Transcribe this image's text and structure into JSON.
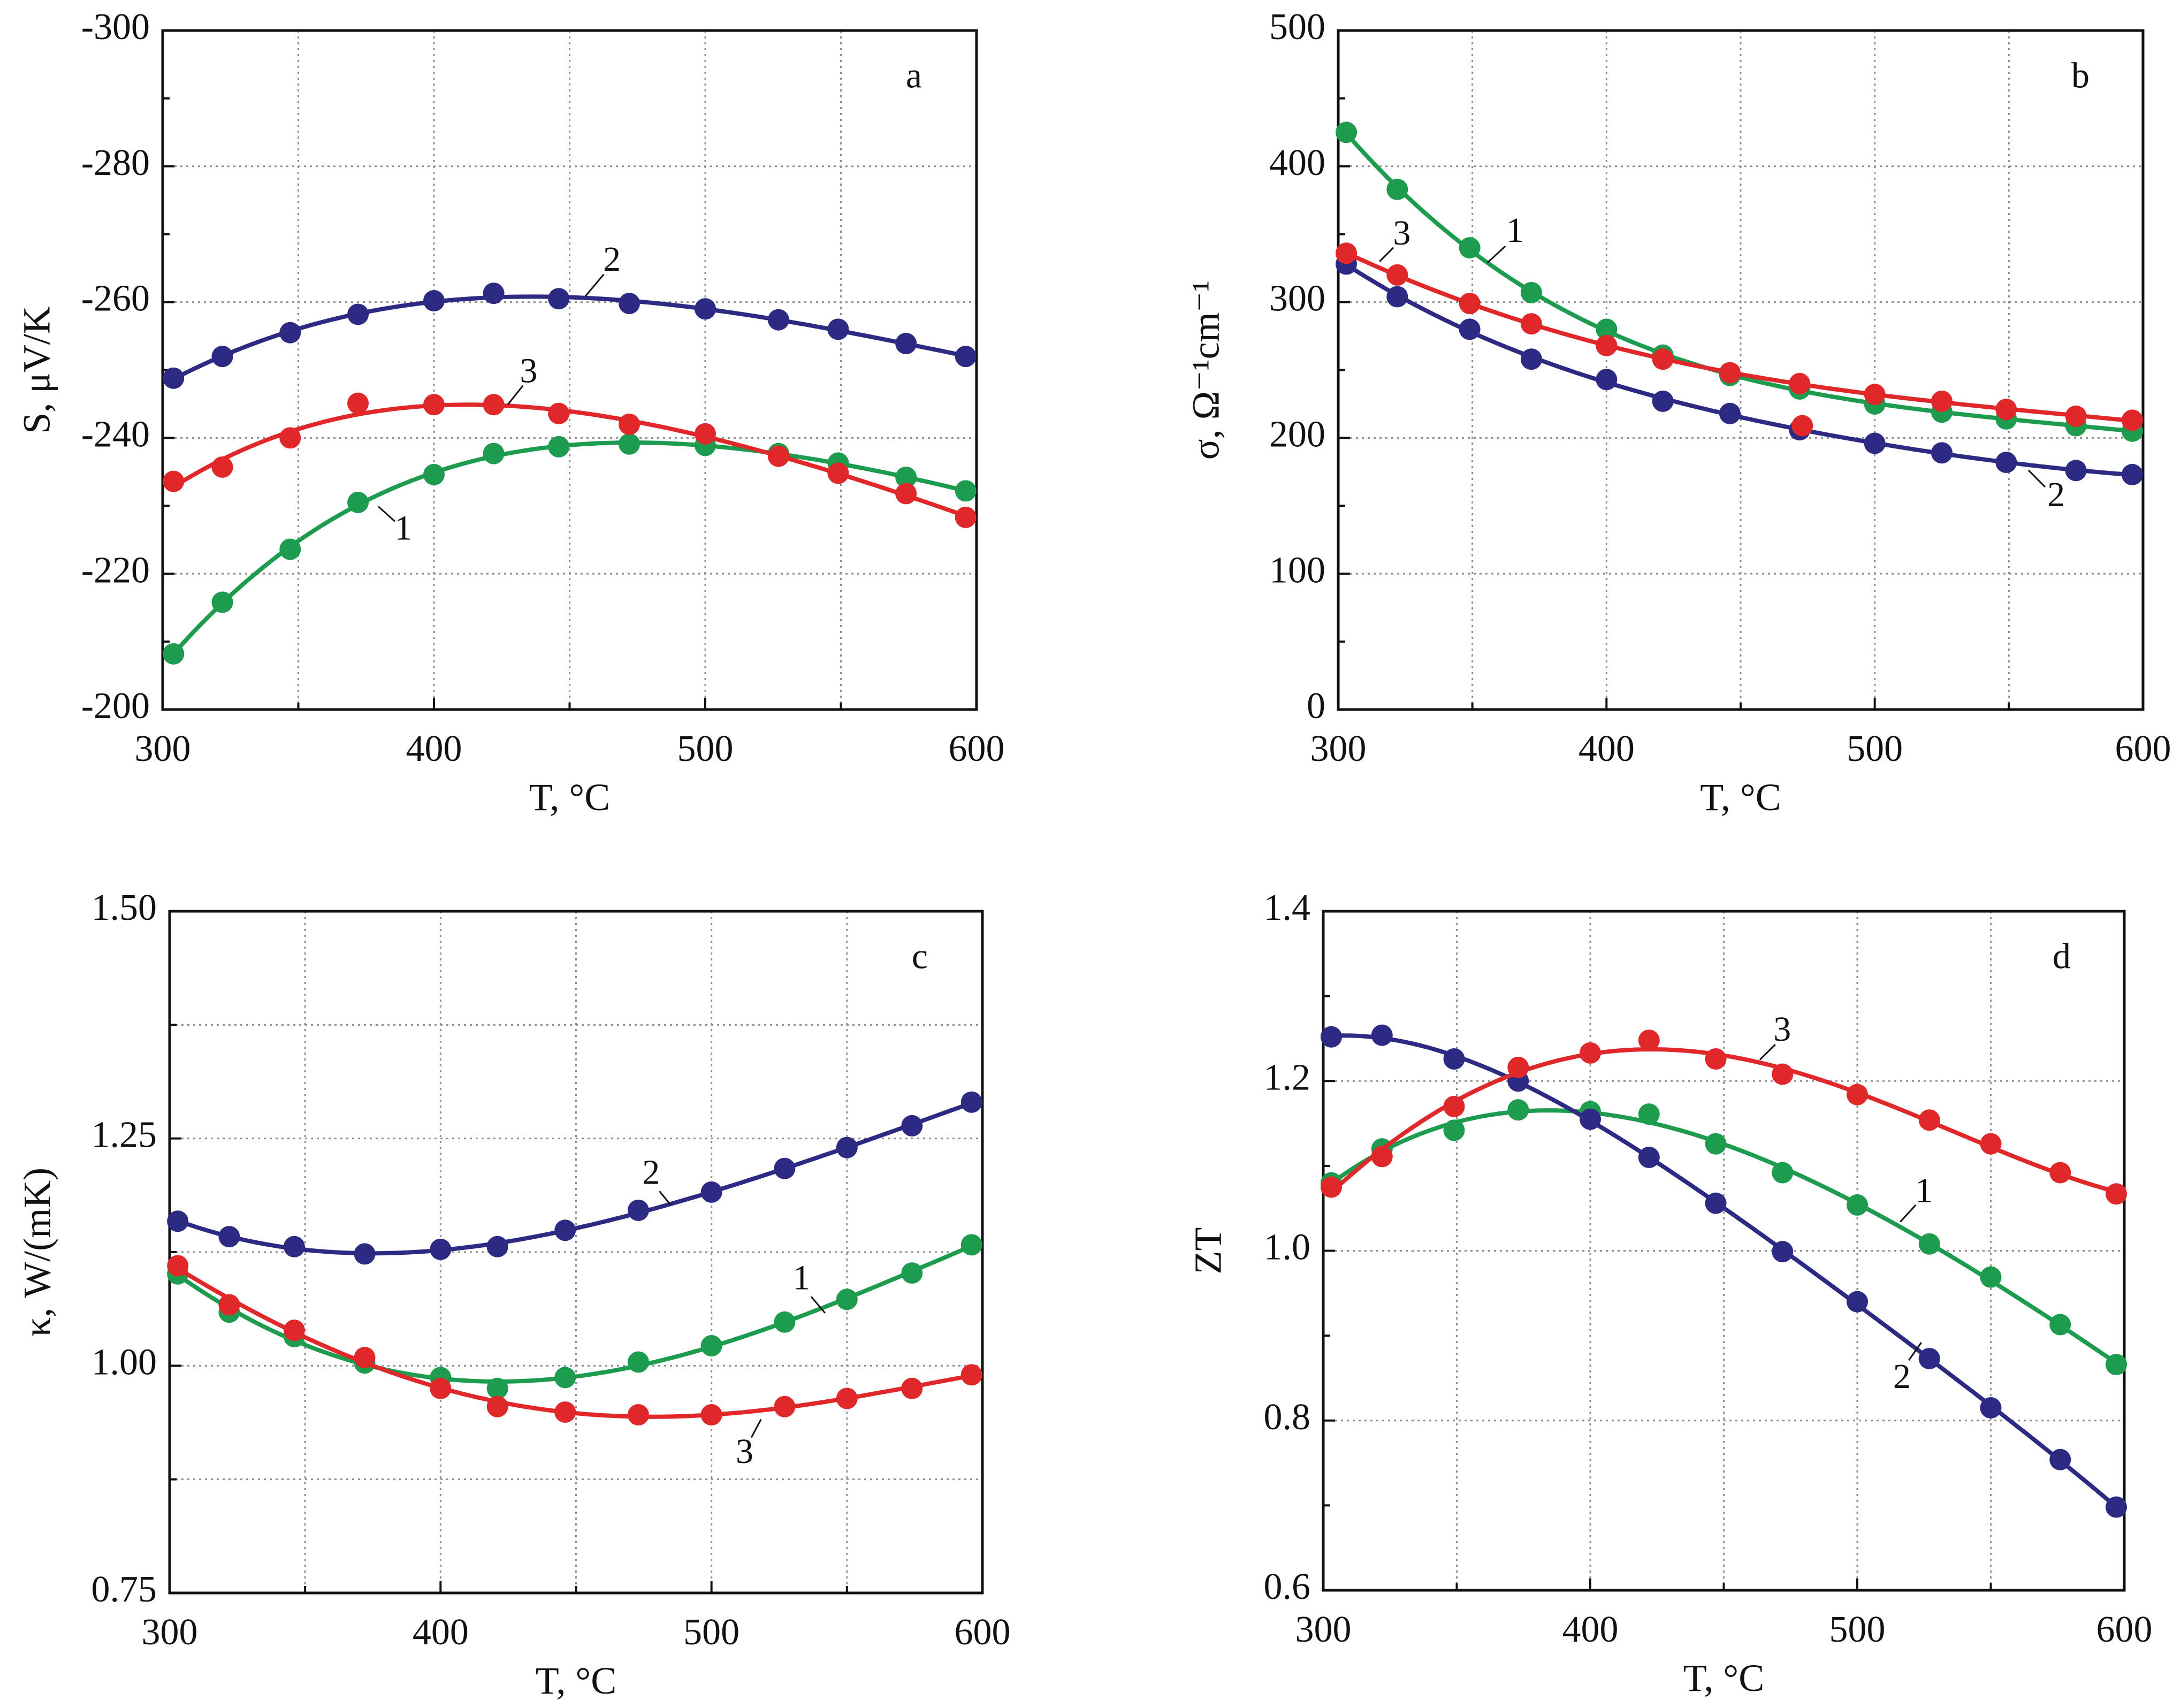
{
  "chart_data": [
    {
      "panel_label": "a",
      "type": "line",
      "xlabel": "T, °C",
      "ylabel": "S, μV/K",
      "xlim": [
        300,
        600
      ],
      "ylim": [
        -300,
        -200
      ],
      "y_reversed": true,
      "grid": true,
      "xticks": [
        {
          "value": 300,
          "label": "300"
        },
        {
          "value": 400,
          "label": "400"
        },
        {
          "value": 500,
          "label": "500"
        },
        {
          "value": 600,
          "label": "600"
        }
      ],
      "yticks": [
        {
          "value": -300,
          "label": "-300"
        },
        {
          "value": -280,
          "label": "-280"
        },
        {
          "value": -260,
          "label": "-260"
        },
        {
          "value": -240,
          "label": "-240"
        },
        {
          "value": -220,
          "label": "-220"
        },
        {
          "value": -200,
          "label": "-200"
        }
      ],
      "series": [
        {
          "name": "1",
          "color": "#1d9b4e",
          "points": [
            [
              304,
              -208.2
            ],
            [
              322,
              -215.8
            ],
            [
              347,
              -223.6
            ],
            [
              372,
              -230.5
            ],
            [
              400,
              -234.6
            ],
            [
              422,
              -237.7
            ],
            [
              446,
              -238.7
            ],
            [
              472,
              -239.1
            ],
            [
              500,
              -238.9
            ],
            [
              527,
              -237.7
            ],
            [
              549,
              -236.3
            ],
            [
              574,
              -234.2
            ],
            [
              596,
              -232.2
            ]
          ],
          "label": {
            "text": "1",
            "at": [
              388.7,
              -226.2
            ],
            "leader": [
              [
                379.5,
                -229.9
              ],
              [
                385.6,
                -227.7
              ]
            ]
          }
        },
        {
          "name": "2",
          "color": "#2d2a84",
          "points": [
            [
              304,
              -248.8
            ],
            [
              322,
              -252.0
            ],
            [
              347,
              -255.5
            ],
            [
              372,
              -258.2
            ],
            [
              400,
              -260.2
            ],
            [
              422,
              -261.3
            ],
            [
              446,
              -260.5
            ],
            [
              472,
              -259.8
            ],
            [
              500,
              -259.0
            ],
            [
              527,
              -257.4
            ],
            [
              549,
              -256.0
            ],
            [
              574,
              -253.9
            ],
            [
              596,
              -252.0
            ]
          ],
          "label": {
            "text": "2",
            "at": [
              465.6,
              -265.8
            ],
            "leader": [
              [
                455.9,
                -260.9
              ],
              [
                462.6,
                -264.1
              ]
            ]
          }
        },
        {
          "name": "3",
          "color": "#e0282a",
          "points": [
            [
              304,
              -233.6
            ],
            [
              322,
              -235.7
            ],
            [
              347,
              -240.0
            ],
            [
              372,
              -245.1
            ],
            [
              400,
              -244.9
            ],
            [
              422,
              -244.9
            ],
            [
              446,
              -243.6
            ],
            [
              472,
              -242.0
            ],
            [
              500,
              -240.6
            ],
            [
              527,
              -237.3
            ],
            [
              549,
              -234.8
            ],
            [
              574,
              -231.8
            ],
            [
              596,
              -228.3
            ]
          ],
          "label": {
            "text": "3",
            "at": [
              434.9,
              -249.4
            ],
            "leader": [
              [
                427.2,
                -244.9
              ],
              [
                432.8,
                -247.7
              ]
            ]
          }
        }
      ]
    },
    {
      "panel_label": "b",
      "type": "line",
      "xlabel": "T, °C",
      "ylabel": "σ, Ω⁻¹cm⁻¹",
      "xlim": [
        300,
        600
      ],
      "ylim": [
        0,
        500
      ],
      "y_reversed": false,
      "grid": true,
      "xticks": [
        {
          "value": 300,
          "label": "300"
        },
        {
          "value": 400,
          "label": "400"
        },
        {
          "value": 500,
          "label": "500"
        },
        {
          "value": 600,
          "label": "600"
        }
      ],
      "yticks": [
        {
          "value": 0,
          "label": "0"
        },
        {
          "value": 100,
          "label": "100"
        },
        {
          "value": 200,
          "label": "200"
        },
        {
          "value": 300,
          "label": "300"
        },
        {
          "value": 400,
          "label": "400"
        },
        {
          "value": 500,
          "label": "500"
        }
      ],
      "series": [
        {
          "name": "1",
          "color": "#1d9b4e",
          "points": [
            [
              303,
              425
            ],
            [
              322,
              383
            ],
            [
              349,
              340
            ],
            [
              372,
              307
            ],
            [
              400,
              280
            ],
            [
              421,
              261
            ],
            [
              446,
              246
            ],
            [
              472,
              236
            ],
            [
              500,
              225
            ],
            [
              525,
              219
            ],
            [
              549,
              214
            ],
            [
              575,
              209
            ],
            [
              596,
              205
            ]
          ],
          "label": {
            "text": "1",
            "at": [
              365.9,
              350.4
            ],
            "leader": [
              [
                355.6,
                329.0
              ],
              [
                362.3,
                341.2
              ]
            ]
          }
        },
        {
          "name": "2",
          "color": "#2d2a84",
          "points": [
            [
              303,
              328
            ],
            [
              322,
              304
            ],
            [
              349,
              280
            ],
            [
              372,
              258
            ],
            [
              400,
              243
            ],
            [
              421,
              227
            ],
            [
              446,
              218
            ],
            [
              472,
              206
            ],
            [
              500,
              196
            ],
            [
              525,
              189
            ],
            [
              549,
              182
            ],
            [
              575,
              176
            ],
            [
              596,
              173
            ]
          ],
          "label": {
            "text": "2",
            "at": [
              567.6,
              155.7
            ],
            "leader": [
              [
                557.3,
                176.2
              ],
              [
                563.5,
                163.9
              ]
            ]
          }
        },
        {
          "name": "3",
          "color": "#e0282a",
          "points": [
            [
              303,
              336
            ],
            [
              322,
              320
            ],
            [
              349,
              299
            ],
            [
              372,
              284
            ],
            [
              400,
              268
            ],
            [
              421,
              258
            ],
            [
              446,
              248
            ],
            [
              472,
              240
            ],
            [
              500,
              232
            ],
            [
              525,
              227
            ],
            [
              549,
              221
            ],
            [
              575,
              216
            ],
            [
              596,
              213
            ]
          ],
          "extra_points": [
            [
              473,
              209
            ]
          ],
          "label": {
            "text": "3",
            "at": [
              323.7,
              348.4
            ],
            "leader": [
              [
                315.4,
                329.9
              ],
              [
                320.6,
                340.2
              ]
            ]
          }
        }
      ]
    },
    {
      "panel_label": "c",
      "type": "line",
      "xlabel": "T, °C",
      "ylabel": "κ, W/(mK)",
      "xlim": [
        300,
        600
      ],
      "ylim": [
        0.75,
        1.5
      ],
      "y_reversed": false,
      "grid": true,
      "xticks": [
        {
          "value": 300,
          "label": "300"
        },
        {
          "value": 400,
          "label": "400"
        },
        {
          "value": 500,
          "label": "500"
        },
        {
          "value": 600,
          "label": "600"
        }
      ],
      "yticks": [
        {
          "value": 0.75,
          "label": "0.75"
        },
        {
          "value": 1.0,
          "label": "1.00"
        },
        {
          "value": 1.25,
          "label": "1.25"
        },
        {
          "value": 1.5,
          "label": "1.50"
        }
      ],
      "series": [
        {
          "name": "1",
          "color": "#1d9b4e",
          "points": [
            [
              303,
              1.101
            ],
            [
              322,
              1.059
            ],
            [
              346,
              1.032
            ],
            [
              372,
              1.003
            ],
            [
              400,
              0.987
            ],
            [
              421,
              0.975
            ],
            [
              446,
              0.987
            ],
            [
              473,
              1.004
            ],
            [
              500,
              1.022
            ],
            [
              527,
              1.048
            ],
            [
              550,
              1.073
            ],
            [
              574,
              1.102
            ],
            [
              596,
              1.133
            ]
          ],
          "label": {
            "text": "1",
            "at": [
              533.2,
              1.093
            ],
            "leader": [
              [
                536.8,
                1.076
              ],
              [
                541.9,
                1.058
              ]
            ]
          }
        },
        {
          "name": "2",
          "color": "#2d2a84",
          "points": [
            [
              303,
              1.159
            ],
            [
              322,
              1.142
            ],
            [
              346,
              1.131
            ],
            [
              372,
              1.123
            ],
            [
              400,
              1.128
            ],
            [
              421,
              1.131
            ],
            [
              446,
              1.149
            ],
            [
              473,
              1.171
            ],
            [
              500,
              1.191
            ],
            [
              527,
              1.217
            ],
            [
              550,
              1.24
            ],
            [
              574,
              1.264
            ],
            [
              596,
              1.29
            ]
          ],
          "label": {
            "text": "2",
            "at": [
              477.7,
              1.209
            ],
            "leader": [
              [
                480.8,
                1.192
              ],
              [
                484.9,
                1.177
              ]
            ]
          }
        },
        {
          "name": "3",
          "color": "#e0282a",
          "points": [
            [
              303,
              1.11
            ],
            [
              322,
              1.067
            ],
            [
              346,
              1.039
            ],
            [
              372,
              1.009
            ],
            [
              400,
              0.975
            ],
            [
              421,
              0.955
            ],
            [
              446,
              0.949
            ],
            [
              473,
              0.946
            ],
            [
              500,
              0.946
            ],
            [
              527,
              0.955
            ],
            [
              550,
              0.964
            ],
            [
              574,
              0.975
            ],
            [
              596,
              0.99
            ]
          ],
          "label": {
            "text": "3",
            "at": [
              512.2,
              0.902
            ],
            "leader": [
              [
                514.7,
                0.921
              ],
              [
                518.3,
                0.941
              ]
            ]
          }
        }
      ]
    },
    {
      "panel_label": "d",
      "type": "line",
      "xlabel": "T, °C",
      "ylabel": "ZT",
      "xlim": [
        300,
        600
      ],
      "ylim": [
        0.6,
        1.4
      ],
      "y_reversed": false,
      "grid": true,
      "xticks": [
        {
          "value": 300,
          "label": "300"
        },
        {
          "value": 400,
          "label": "400"
        },
        {
          "value": 500,
          "label": "500"
        },
        {
          "value": 600,
          "label": "600"
        }
      ],
      "yticks": [
        {
          "value": 0.6,
          "label": "0.6"
        },
        {
          "value": 0.8,
          "label": "0.8"
        },
        {
          "value": 1.0,
          "label": "1.0"
        },
        {
          "value": 1.2,
          "label": "1.2"
        },
        {
          "value": 1.4,
          "label": "1.4"
        }
      ],
      "series": [
        {
          "name": "1",
          "color": "#1d9b4e",
          "points": [
            [
              303,
              1.08
            ],
            [
              322,
              1.12
            ],
            [
              349,
              1.142
            ],
            [
              373,
              1.166
            ],
            [
              400,
              1.164
            ],
            [
              422,
              1.161
            ],
            [
              447,
              1.126
            ],
            [
              472,
              1.092
            ],
            [
              500,
              1.054
            ],
            [
              527,
              1.008
            ],
            [
              550,
              0.969
            ],
            [
              576,
              0.913
            ],
            [
              597,
              0.866
            ]
          ],
          "label": {
            "text": "1",
            "at": [
              525.0,
              1.067
            ],
            "leader": [
              [
                516.1,
                1.034
              ],
              [
                521.9,
                1.054
              ]
            ]
          }
        },
        {
          "name": "2",
          "color": "#2d2a84",
          "points": [
            [
              303,
              1.252
            ],
            [
              322,
              1.254
            ],
            [
              349,
              1.226
            ],
            [
              373,
              1.2
            ],
            [
              400,
              1.155
            ],
            [
              422,
              1.11
            ],
            [
              447,
              1.056
            ],
            [
              472,
              0.999
            ],
            [
              500,
              0.94
            ],
            [
              527,
              0.873
            ],
            [
              550,
              0.815
            ],
            [
              576,
              0.754
            ],
            [
              597,
              0.698
            ]
          ],
          "label": {
            "text": "2",
            "at": [
              516.7,
              0.848
            ],
            "leader": [
              [
                519.3,
                0.871
              ],
              [
                524.0,
                0.892
              ]
            ]
          }
        },
        {
          "name": "3",
          "color": "#e0282a",
          "points": [
            [
              303,
              1.075
            ],
            [
              322,
              1.111
            ],
            [
              349,
              1.17
            ],
            [
              373,
              1.216
            ],
            [
              400,
              1.233
            ],
            [
              422,
              1.248
            ],
            [
              447,
              1.226
            ],
            [
              472,
              1.208
            ],
            [
              500,
              1.184
            ],
            [
              527,
              1.154
            ],
            [
              550,
              1.126
            ],
            [
              576,
              1.092
            ],
            [
              597,
              1.067
            ]
          ],
          "label": {
            "text": "3",
            "at": [
              471.9,
              1.257
            ],
            "leader": [
              [
                463.5,
                1.225
              ],
              [
                469.3,
                1.243
              ]
            ]
          }
        }
      ]
    }
  ]
}
